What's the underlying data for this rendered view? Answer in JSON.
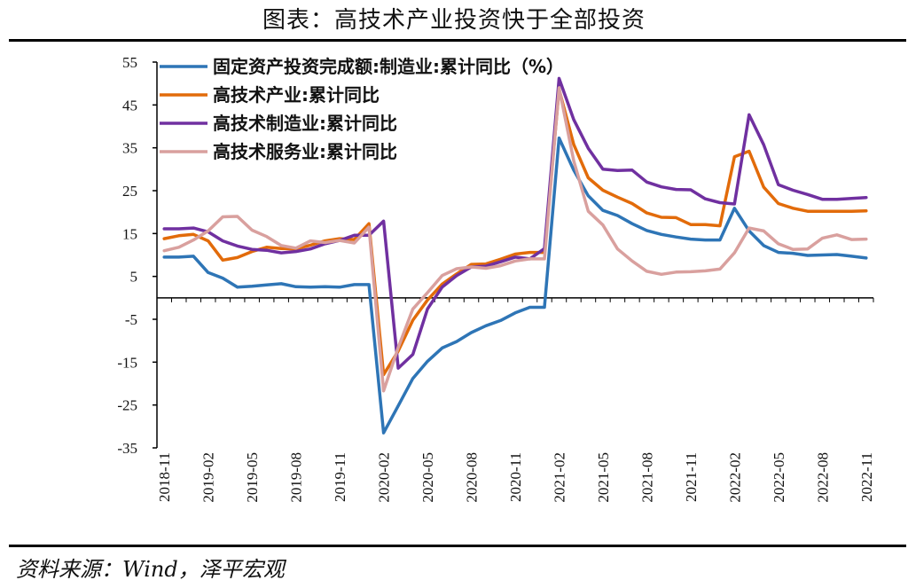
{
  "header": {
    "title": "图表：高技术产业投资快于全部投资"
  },
  "footer": {
    "source": "资料来源：Wind，泽平宏观"
  },
  "chart_data": {
    "type": "line",
    "ylim": [
      -35,
      55
    ],
    "yticks": [
      -35,
      -25,
      -15,
      -5,
      5,
      15,
      25,
      35,
      45,
      55
    ],
    "xticks": [
      "2018-11",
      "2019-02",
      "2019-05",
      "2019-08",
      "2019-11",
      "2020-02",
      "2020-05",
      "2020-08",
      "2020-11",
      "2021-02",
      "2021-05",
      "2021-08",
      "2021-11",
      "2022-02",
      "2022-05",
      "2022-08",
      "2022-11"
    ],
    "x": [
      "2018-11",
      "2018-12",
      "2019-01",
      "2019-02",
      "2019-03",
      "2019-04",
      "2019-05",
      "2019-06",
      "2019-07",
      "2019-08",
      "2019-09",
      "2019-10",
      "2019-11",
      "2019-12",
      "2020-01",
      "2020-02",
      "2020-03",
      "2020-04",
      "2020-05",
      "2020-06",
      "2020-07",
      "2020-08",
      "2020-09",
      "2020-10",
      "2020-11",
      "2020-12",
      "2021-01",
      "2021-02",
      "2021-03",
      "2021-04",
      "2021-05",
      "2021-06",
      "2021-07",
      "2021-08",
      "2021-09",
      "2021-10",
      "2021-11",
      "2021-12",
      "2022-01",
      "2022-02",
      "2022-03",
      "2022-04",
      "2022-05",
      "2022-06",
      "2022-07",
      "2022-08",
      "2022-09",
      "2022-10",
      "2022-11"
    ],
    "series": [
      {
        "name": "固定资产投资完成额:制造业:累计同比（%）",
        "color": "#2E75B6",
        "values": [
          9.5,
          9.5,
          9.7,
          5.9,
          4.6,
          2.5,
          2.7,
          3.0,
          3.3,
          2.6,
          2.5,
          2.6,
          2.5,
          3.1,
          3.1,
          -31.5,
          -25.2,
          -18.8,
          -14.8,
          -11.7,
          -10.2,
          -8.1,
          -6.5,
          -5.3,
          -3.5,
          -2.2,
          -2.2,
          37.3,
          29.8,
          23.8,
          20.4,
          19.2,
          17.3,
          15.7,
          14.8,
          14.2,
          13.7,
          13.5,
          13.5,
          20.9,
          15.6,
          12.2,
          10.6,
          10.4,
          9.9,
          10.0,
          10.1,
          9.7,
          9.3
        ]
      },
      {
        "name": "高技术产业:累计同比",
        "color": "#E26B0A",
        "values": [
          13.8,
          14.5,
          14.8,
          13.3,
          8.8,
          9.4,
          10.8,
          11.8,
          11.5,
          11.4,
          12.3,
          13.3,
          13.8,
          13.6,
          17.3,
          -17.9,
          -12.4,
          -5.2,
          -0.5,
          3.2,
          5.6,
          7.8,
          7.9,
          9.0,
          10.2,
          10.6,
          10.6,
          48.6,
          35.8,
          28.0,
          25.1,
          23.5,
          22.0,
          19.8,
          18.8,
          18.7,
          17.1,
          17.1,
          16.8,
          32.9,
          34.2,
          25.8,
          22.0,
          20.9,
          20.2,
          20.2,
          20.2,
          20.2,
          20.3
        ]
      },
      {
        "name": "高技术制造业:累计同比",
        "color": "#7030A0",
        "values": [
          16.1,
          16.1,
          16.3,
          15.4,
          13.3,
          12.1,
          11.3,
          11.1,
          10.5,
          10.8,
          11.4,
          12.6,
          13.4,
          14.6,
          14.6,
          17.9,
          -16.4,
          -13.2,
          -2.6,
          2.5,
          5.2,
          7.2,
          7.4,
          8.4,
          9.5,
          9.1,
          11.5,
          51.2,
          41.6,
          34.9,
          30.0,
          29.7,
          29.8,
          27.0,
          25.9,
          25.3,
          25.2,
          23.1,
          22.2,
          21.9,
          42.7,
          35.7,
          26.4,
          25.1,
          24.1,
          23.0,
          23.0,
          23.2,
          23.4
        ]
      },
      {
        "name": "高技术服务业:累计同比",
        "color": "#D9A09E",
        "values": [
          11.0,
          11.8,
          13.5,
          15.6,
          18.9,
          19.0,
          15.8,
          14.3,
          12.2,
          11.6,
          13.3,
          12.9,
          13.4,
          12.8,
          16.5,
          -21.7,
          -11.6,
          -2.6,
          1.2,
          5.2,
          6.8,
          7.2,
          6.9,
          7.5,
          8.6,
          9.1,
          9.1,
          49.0,
          32.0,
          20.2,
          17.0,
          11.4,
          8.6,
          6.2,
          5.5,
          6.0,
          6.1,
          6.3,
          6.7,
          10.5,
          16.3,
          15.6,
          12.6,
          11.3,
          11.4,
          13.9,
          14.7,
          13.6,
          13.7
        ]
      }
    ]
  }
}
